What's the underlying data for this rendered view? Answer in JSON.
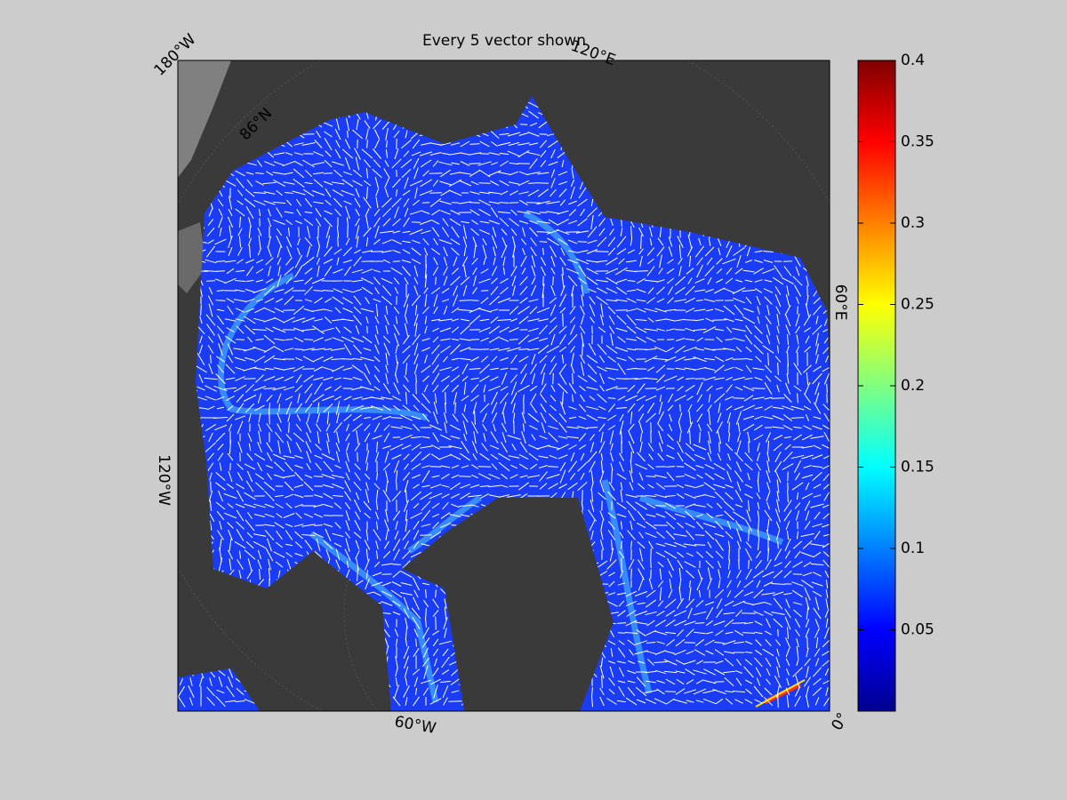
{
  "title": "Every 5 vector shown",
  "map": {
    "labels": [
      "180°W",
      "86°N",
      "120°E",
      "60°E",
      "0°",
      "60°W",
      "120°W"
    ]
  },
  "colorbar": {
    "ylim": [
      0,
      0.4
    ],
    "yticks": [
      0.05,
      0.1,
      0.15,
      0.2,
      0.25,
      0.3,
      0.35,
      0.4
    ],
    "colormap": [
      "#00008f",
      "#0000ff",
      "#0080ff",
      "#00ffff",
      "#80ff80",
      "#ffff00",
      "#ff8000",
      "#ff0000",
      "#800000"
    ]
  }
}
